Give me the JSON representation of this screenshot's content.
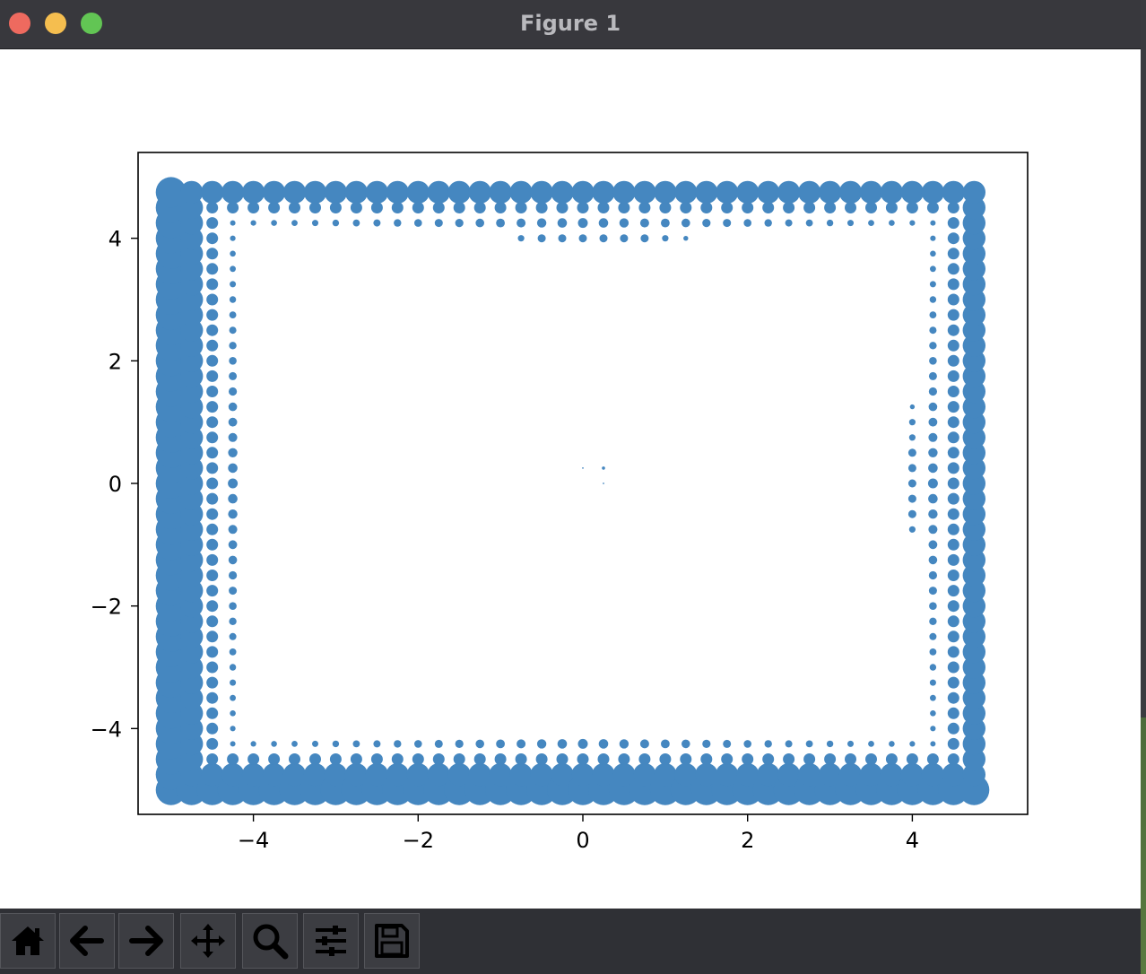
{
  "window": {
    "title": "Figure 1"
  },
  "toolbar": {
    "buttons": [
      {
        "icon": "home-icon"
      },
      {
        "icon": "back-arrow-icon"
      },
      {
        "icon": "forward-arrow-icon"
      },
      {
        "icon": "pan-icon"
      },
      {
        "icon": "zoom-icon"
      },
      {
        "icon": "configure-subplots-icon"
      },
      {
        "icon": "save-icon"
      }
    ]
  },
  "colors": {
    "marker": "#4587c0",
    "titlebar": "#38383d",
    "toolbar": "#2f3035"
  },
  "chart_data": {
    "type": "scatter",
    "title": "",
    "xlabel": "",
    "ylabel": "",
    "xlim": [
      -5.4,
      5.4
    ],
    "ylim": [
      -5.4,
      5.4
    ],
    "xticks": [
      -4,
      -2,
      0,
      2,
      4
    ],
    "yticks": [
      -4,
      -2,
      0,
      2,
      4
    ],
    "xtick_labels": [
      "−4",
      "−2",
      "0",
      "2",
      "4"
    ],
    "ytick_labels": [
      "−4",
      "−2",
      "0",
      "2",
      "4"
    ],
    "grid": false,
    "marker_size_rule": "marker area grows with max(|x|,|y|); grid points spaced 0.25 on [-5, 4.75], only outer region and a few scattered inner points shown",
    "points": [
      [
        0.0,
        0.25,
        1
      ],
      [
        0.25,
        0.25,
        2
      ],
      [
        0.25,
        0.0,
        1
      ],
      [
        -4.25,
        1.0,
        4
      ],
      [
        -4.25,
        0.75,
        4
      ],
      [
        -4.25,
        0.5,
        4
      ],
      [
        -4.25,
        0.25,
        4
      ],
      [
        -4.25,
        0.0,
        4
      ],
      [
        -4.25,
        -0.25,
        4
      ],
      [
        -4.25,
        -0.5,
        4
      ],
      [
        -4.25,
        -0.75,
        3
      ],
      [
        4.0,
        1.25,
        3
      ],
      [
        4.0,
        1.0,
        4
      ],
      [
        4.0,
        0.75,
        4
      ],
      [
        4.0,
        0.5,
        5
      ],
      [
        4.0,
        0.25,
        5
      ],
      [
        4.0,
        0.0,
        5
      ],
      [
        4.0,
        -0.25,
        5
      ],
      [
        4.0,
        -0.5,
        5
      ],
      [
        4.0,
        -0.75,
        4
      ],
      [
        -0.75,
        4.0,
        4
      ],
      [
        -0.5,
        4.0,
        5
      ],
      [
        -0.25,
        4.0,
        5
      ],
      [
        0.0,
        4.0,
        5
      ],
      [
        0.25,
        4.0,
        5
      ],
      [
        0.5,
        4.0,
        5
      ],
      [
        0.75,
        4.0,
        5
      ],
      [
        1.0,
        4.0,
        4
      ],
      [
        1.25,
        4.0,
        3
      ],
      [
        -0.75,
        -4.25,
        3
      ],
      [
        -0.5,
        -4.25,
        4
      ],
      [
        -0.25,
        -4.25,
        4
      ],
      [
        0.0,
        -4.25,
        5
      ],
      [
        0.25,
        -4.25,
        4
      ],
      [
        0.5,
        -4.25,
        4
      ],
      [
        0.75,
        -4.25,
        4
      ],
      [
        1.0,
        -4.25,
        3
      ]
    ]
  }
}
